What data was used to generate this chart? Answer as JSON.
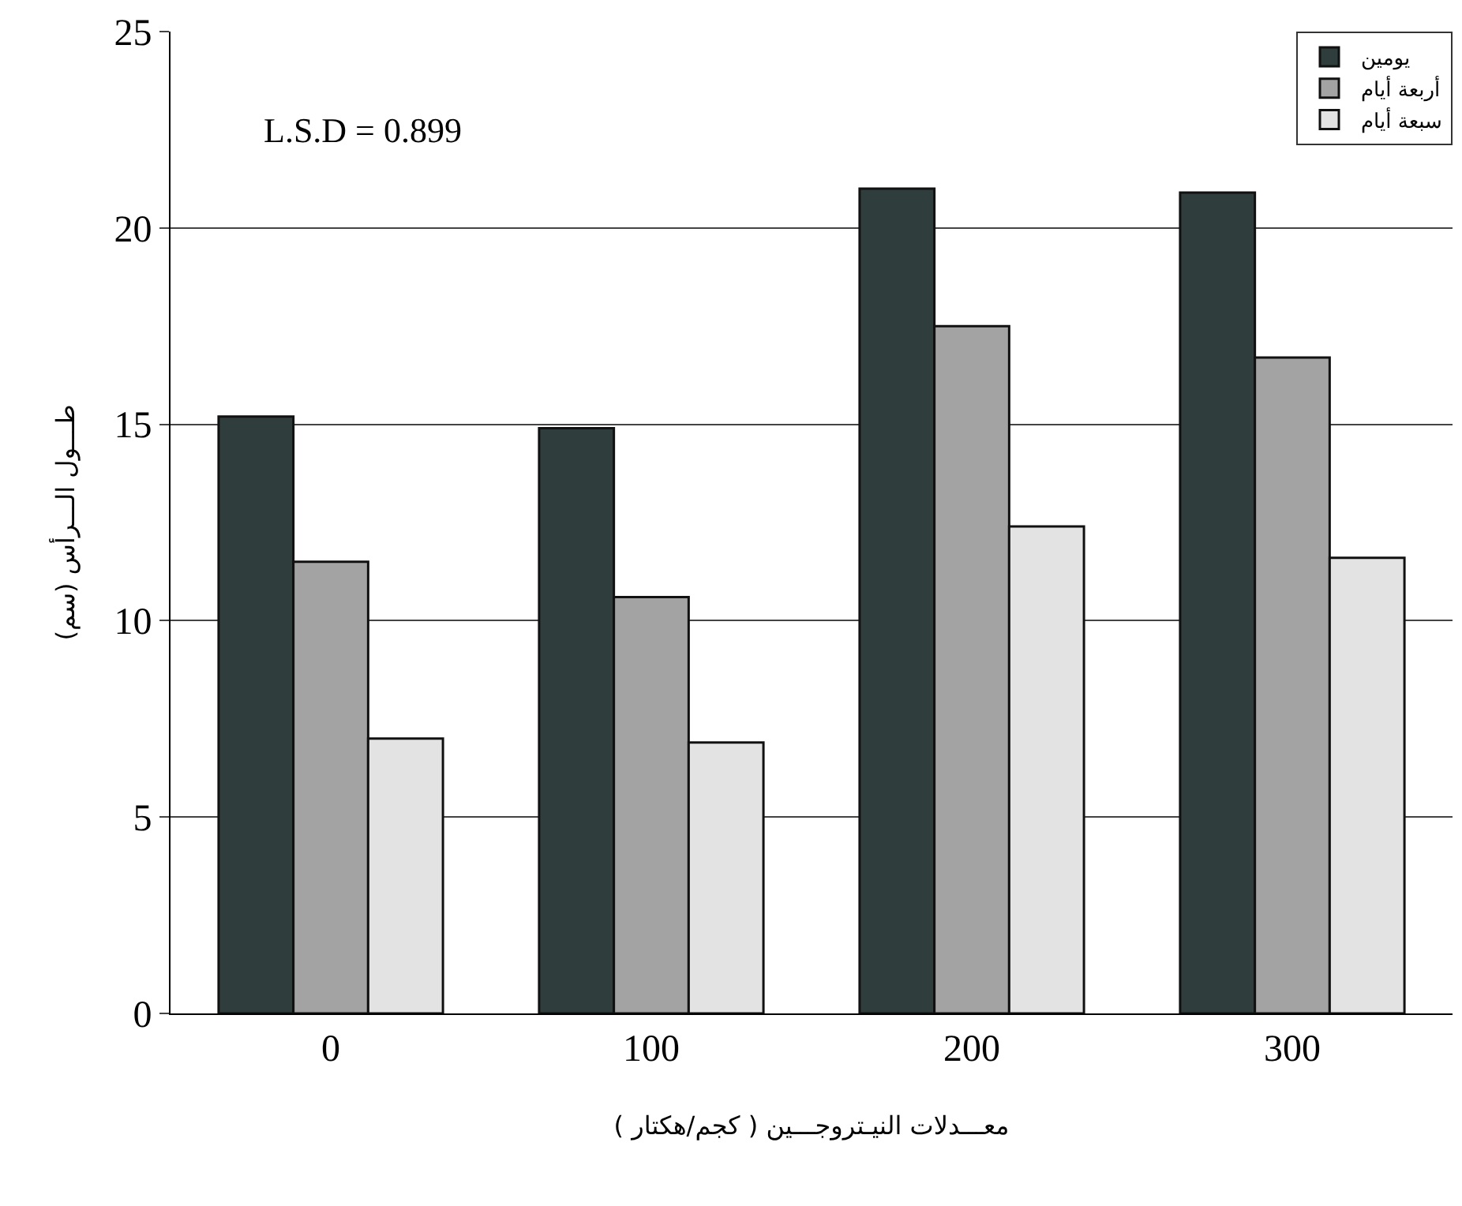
{
  "chart_data": {
    "type": "bar",
    "xlabel": "معـــدلات النيـتروجـــين ( كجم/هكتار )",
    "ylabel": "طـــول الـــرأس (سم)",
    "categories": [
      "0",
      "100",
      "200",
      "300"
    ],
    "series": [
      {
        "name": "يومين",
        "color": "#2f3d3d",
        "values": [
          15.2,
          14.9,
          21.0,
          20.9
        ]
      },
      {
        "name": "أربعة أيام",
        "color": "#a3a3a3",
        "values": [
          11.5,
          10.6,
          17.5,
          16.7
        ]
      },
      {
        "name": "سبعة أيام",
        "color": "#e3e3e3",
        "values": [
          7.0,
          6.9,
          12.4,
          11.6
        ]
      }
    ],
    "ylim": [
      0,
      25
    ],
    "yticks": [
      0,
      5,
      10,
      15,
      20,
      25
    ],
    "grid": "y",
    "legend": "top right",
    "annotations": [
      "L.S.D = 0.899"
    ]
  }
}
